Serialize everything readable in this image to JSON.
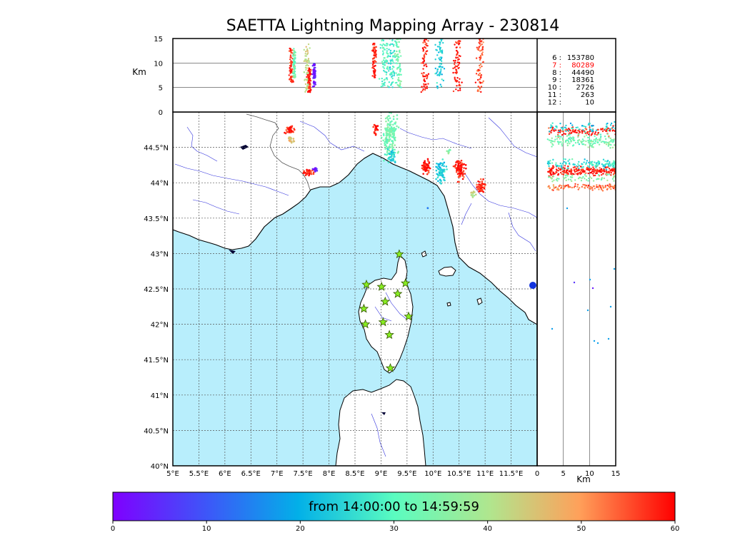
{
  "title": "SAETTA Lightning Mapping Array - 230814",
  "colors": {
    "sea": "#b8eefc",
    "land": "#ffffff",
    "coast": "#000000",
    "rivers": "#3333dd",
    "borders": "#555555",
    "grid": "#555555",
    "station_fill": "#88ee22",
    "station_stroke": "#335500"
  },
  "map": {
    "lon_ticks": [
      "5°E",
      "5.5°E",
      "6°E",
      "6.5°E",
      "7°E",
      "7.5°E",
      "8°E",
      "8.5°E",
      "9°E",
      "9.5°E",
      "10°E",
      "10.5°E",
      "11°E",
      "11.5°E"
    ],
    "lat_ticks": [
      "40°N",
      "40.5°N",
      "41°N",
      "41.5°N",
      "42°N",
      "42.5°N",
      "43°N",
      "43.5°N",
      "44°N",
      "44.5°N"
    ],
    "lon_range": [
      5,
      12
    ],
    "lat_range": [
      40,
      45
    ],
    "lon_values": [
      5,
      5.5,
      6,
      6.5,
      7,
      7.5,
      8,
      8.5,
      9,
      9.5,
      10,
      10.5,
      11,
      11.5
    ],
    "lat_values": [
      40,
      40.5,
      41,
      41.5,
      42,
      42.5,
      43,
      43.5,
      44,
      44.5
    ]
  },
  "stations": [
    {
      "lon": 9.35,
      "lat": 42.99
    },
    {
      "lon": 8.72,
      "lat": 42.56
    },
    {
      "lon": 9.01,
      "lat": 42.53
    },
    {
      "lon": 9.47,
      "lat": 42.58
    },
    {
      "lon": 9.32,
      "lat": 42.43
    },
    {
      "lon": 9.08,
      "lat": 42.32
    },
    {
      "lon": 8.67,
      "lat": 42.22
    },
    {
      "lon": 9.53,
      "lat": 42.11
    },
    {
      "lon": 8.7,
      "lat": 42.0
    },
    {
      "lon": 9.04,
      "lat": 42.03
    },
    {
      "lon": 9.16,
      "lat": 41.85
    },
    {
      "lon": 9.18,
      "lat": 41.38
    }
  ],
  "altitude_panel": {
    "ylabel": "Km",
    "yticks": [
      "0",
      "5",
      "10",
      "15"
    ],
    "yrange": [
      0,
      15
    ]
  },
  "side_panel": {
    "xlabel": "Km",
    "xticks": [
      "0",
      "5",
      "10",
      "15"
    ],
    "xrange": [
      0,
      15
    ]
  },
  "stats": [
    {
      "label": "6 :",
      "value": "153780",
      "highlight": false
    },
    {
      "label": "7 :",
      "value": "80289",
      "highlight": true
    },
    {
      "label": "8 :",
      "value": "44490",
      "highlight": false
    },
    {
      "label": "9 :",
      "value": "18361",
      "highlight": false
    },
    {
      "label": "10 :",
      "value": "2726",
      "highlight": false
    },
    {
      "label": "11 :",
      "value": "263",
      "highlight": false
    },
    {
      "label": "12 :",
      "value": "10",
      "highlight": false
    }
  ],
  "colorbar": {
    "label": "from 14:00:00 to 14:59:59",
    "ticks": [
      "0",
      "10",
      "20",
      "30",
      "40",
      "50",
      "60"
    ]
  }
}
